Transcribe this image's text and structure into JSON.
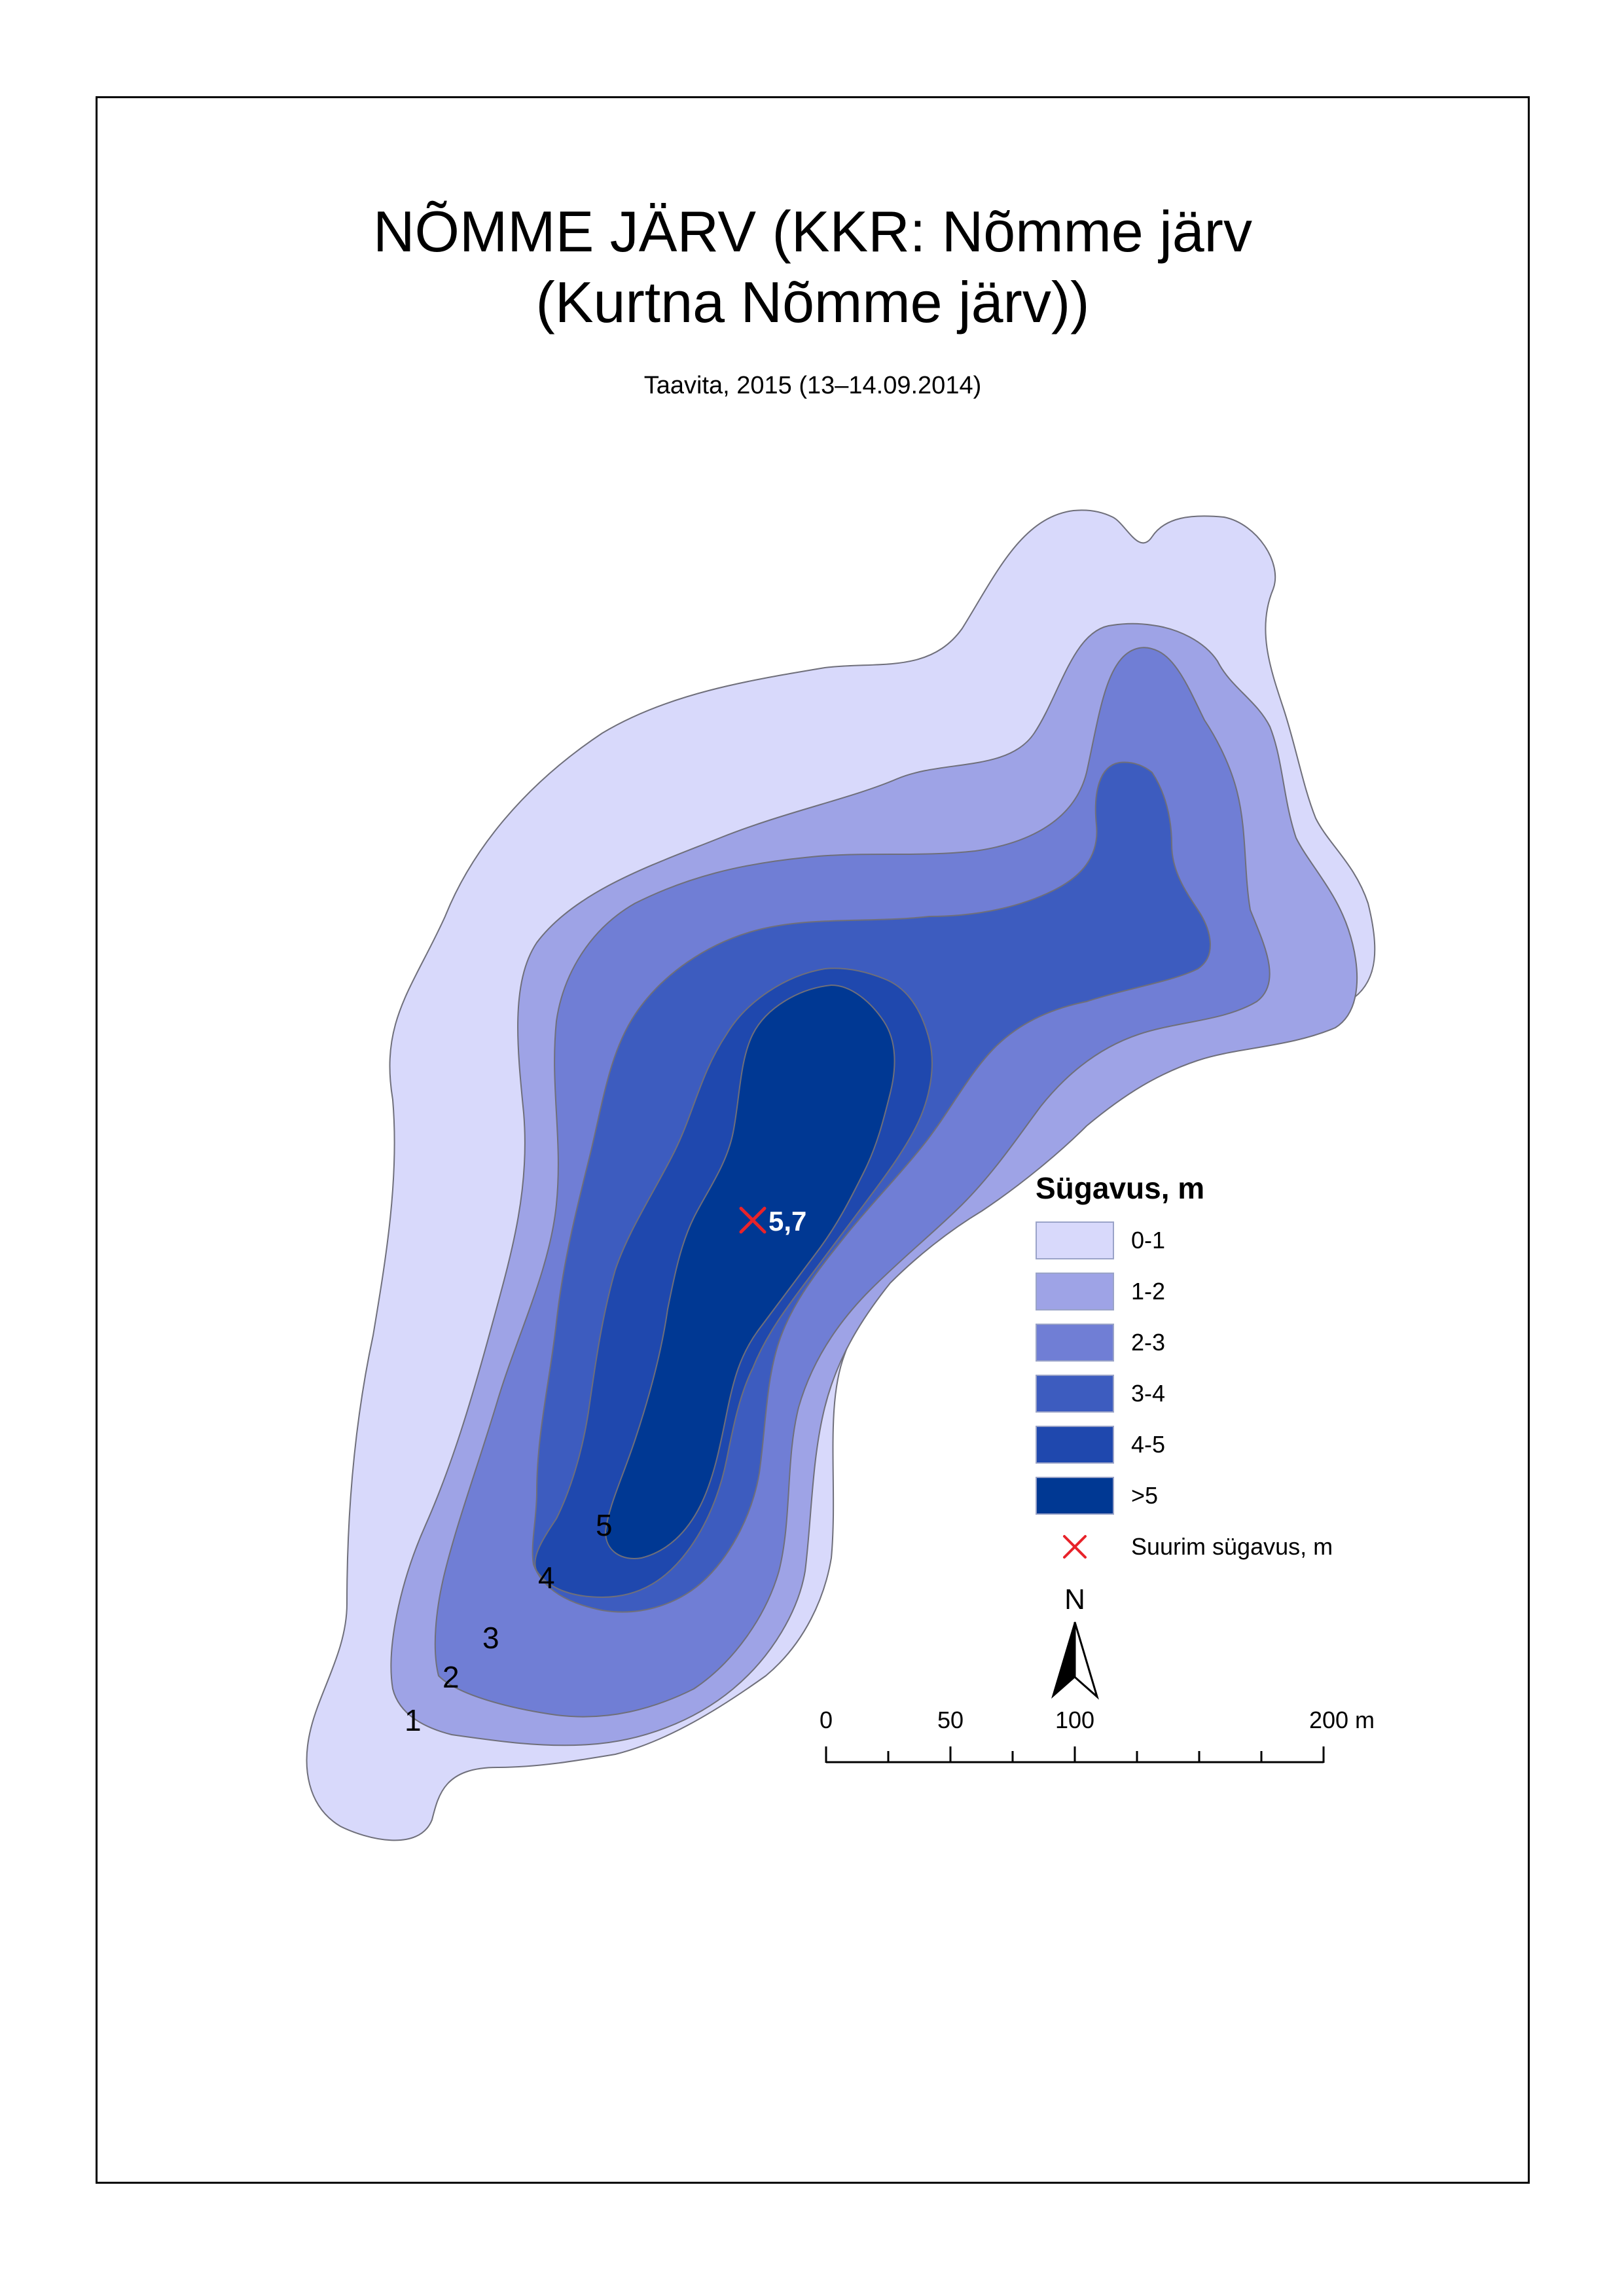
{
  "map": {
    "title_line1": "NÕMME JÄRV (KKR: Nõmme järv",
    "title_line2": "(Kurtna Nõmme järv))",
    "subtitle": "Taavita, 2015 (13–14.09.2014)",
    "max_depth_label": "5,7",
    "contour_labels": [
      "1",
      "2",
      "3",
      "4",
      "5"
    ]
  },
  "legend": {
    "title": "Sügavus, m",
    "classes": [
      {
        "label": "0-1",
        "color": "#d8d9fb"
      },
      {
        "label": "1-2",
        "color": "#9ea3e6"
      },
      {
        "label": "2-3",
        "color": "#707ed5"
      },
      {
        "label": "3-4",
        "color": "#3d5cbf"
      },
      {
        "label": "4-5",
        "color": "#1f48ae"
      },
      {
        "label": ">5",
        "color": "#003893"
      }
    ],
    "max_depth_symbol_label": "Suurim sügavus, m",
    "max_depth_symbol_color": "#e8232a"
  },
  "north_arrow": {
    "label": "N",
    "icon": "north-arrow-icon"
  },
  "scale_bar": {
    "ticks": [
      "0",
      "50",
      "100",
      "200 m"
    ]
  }
}
